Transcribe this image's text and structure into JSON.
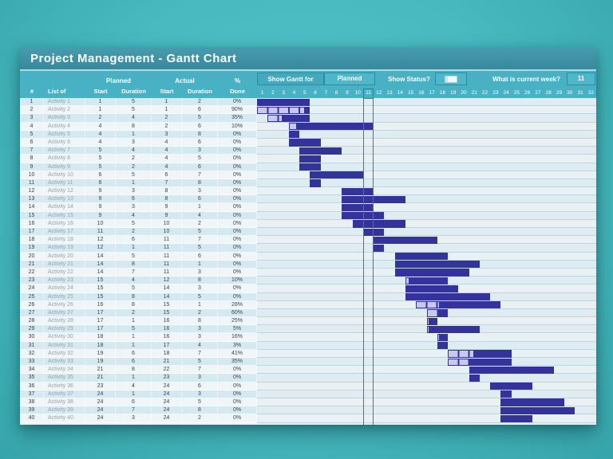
{
  "title": "Project Management - Gantt Chart",
  "controls": {
    "show_gantt_for_label": "Show Gantt for",
    "show_gantt_for_value": "Planned",
    "show_status_label": "Show Status?",
    "current_week_label": "What is current week?",
    "current_week_value": "11"
  },
  "table": {
    "group_headers": {
      "planned": "Planned",
      "actual": "Actual",
      "percent": "%"
    },
    "columns": [
      "#",
      "List of",
      "Start",
      "Duration",
      "Start",
      "Duration",
      "Done"
    ]
  },
  "chart": {
    "weeks": [
      1,
      2,
      3,
      4,
      5,
      6,
      7,
      8,
      9,
      10,
      11,
      12,
      13,
      14,
      15,
      16,
      17,
      18,
      19,
      20,
      21,
      22,
      23,
      24,
      25,
      26,
      27,
      28,
      29,
      30,
      31,
      32
    ],
    "current_week": 11,
    "colors": {
      "bar": "#33339b",
      "bar_progress": "#cbc8ed",
      "current_week_line": "#cf4437",
      "header_teal": "#48b1c4"
    }
  },
  "rows": [
    [
      1,
      "Activity 1",
      1,
      5,
      1,
      2,
      "0%"
    ],
    [
      2,
      "Activity 2",
      1,
      5,
      1,
      6,
      "90%"
    ],
    [
      3,
      "Activity 3",
      2,
      4,
      2,
      5,
      "35%"
    ],
    [
      4,
      "Activity 4",
      4,
      8,
      2,
      6,
      "10%"
    ],
    [
      5,
      "Activity 5",
      4,
      1,
      3,
      8,
      "0%"
    ],
    [
      6,
      "Activity 6",
      4,
      3,
      4,
      6,
      "0%"
    ],
    [
      7,
      "Activity 7",
      5,
      4,
      4,
      3,
      "0%"
    ],
    [
      8,
      "Activity 8",
      5,
      2,
      4,
      5,
      "0%"
    ],
    [
      9,
      "Activity 9",
      5,
      2,
      4,
      6,
      "0%"
    ],
    [
      10,
      "Activity 10",
      6,
      5,
      6,
      7,
      "0%"
    ],
    [
      11,
      "Activity 11",
      6,
      1,
      7,
      8,
      "0%"
    ],
    [
      12,
      "Activity 12",
      9,
      3,
      8,
      3,
      "0%"
    ],
    [
      13,
      "Activity 13",
      9,
      6,
      8,
      6,
      "0%"
    ],
    [
      14,
      "Activity 14",
      9,
      3,
      9,
      1,
      "0%"
    ],
    [
      15,
      "Activity 15",
      9,
      4,
      9,
      4,
      "0%"
    ],
    [
      16,
      "Activity 16",
      10,
      5,
      10,
      2,
      "0%"
    ],
    [
      17,
      "Activity 17",
      11,
      2,
      10,
      5,
      "0%"
    ],
    [
      18,
      "Activity 18",
      12,
      6,
      11,
      7,
      "0%"
    ],
    [
      19,
      "Activity 19",
      12,
      1,
      11,
      5,
      "0%"
    ],
    [
      20,
      "Activity 20",
      14,
      5,
      11,
      6,
      "0%"
    ],
    [
      21,
      "Activity 21",
      14,
      8,
      11,
      1,
      "0%"
    ],
    [
      22,
      "Activity 22",
      14,
      7,
      11,
      3,
      "0%"
    ],
    [
      23,
      "Activity 23",
      15,
      4,
      12,
      8,
      "10%"
    ],
    [
      24,
      "Activity 24",
      15,
      5,
      14,
      3,
      "0%"
    ],
    [
      25,
      "Activity 25",
      15,
      8,
      14,
      5,
      "0%"
    ],
    [
      26,
      "Activity 26",
      16,
      8,
      15,
      1,
      "28%"
    ],
    [
      27,
      "Activity 27",
      17,
      2,
      15,
      2,
      "60%"
    ],
    [
      28,
      "Activity 28",
      17,
      1,
      16,
      8,
      "25%"
    ],
    [
      29,
      "Activity 29",
      17,
      5,
      16,
      3,
      "5%"
    ],
    [
      30,
      "Activity 30",
      18,
      1,
      16,
      3,
      "16%"
    ],
    [
      31,
      "Activity 31",
      18,
      1,
      17,
      4,
      "3%"
    ],
    [
      32,
      "Activity 32",
      19,
      6,
      18,
      7,
      "41%"
    ],
    [
      33,
      "Activity 33",
      19,
      6,
      21,
      5,
      "35%"
    ],
    [
      34,
      "Activity 34",
      21,
      8,
      22,
      7,
      "0%"
    ],
    [
      35,
      "Activity 35",
      21,
      1,
      23,
      3,
      "0%"
    ],
    [
      36,
      "Activity 36",
      23,
      4,
      24,
      6,
      "0%"
    ],
    [
      37,
      "Activity 37",
      24,
      1,
      24,
      3,
      "0%"
    ],
    [
      38,
      "Activity 38",
      24,
      6,
      24,
      5,
      "0%"
    ],
    [
      39,
      "Activity 39",
      24,
      7,
      24,
      8,
      "0%"
    ],
    [
      40,
      "Activity 40",
      24,
      3,
      24,
      2,
      "0%"
    ]
  ]
}
